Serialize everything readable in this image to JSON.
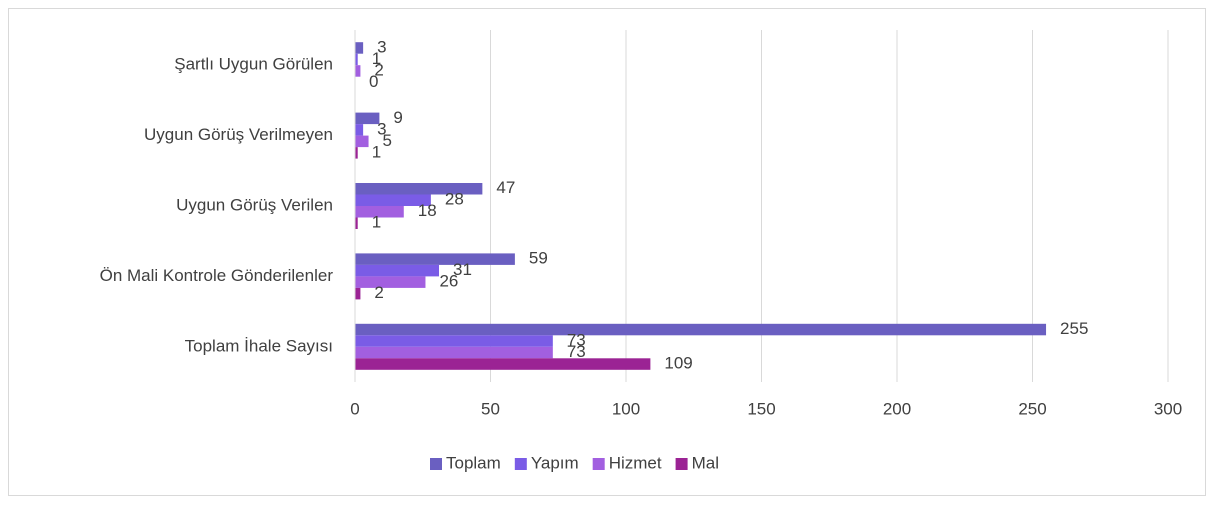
{
  "chart_data": {
    "type": "hbar",
    "categories": [
      "Şartlı Uygun Görülen",
      "Uygun Görüş Verilmeyen",
      "Uygun Görüş Verilen",
      "Ön Mali Kontrole Gönderilenler",
      "Toplam İhale Sayısı"
    ],
    "series": [
      {
        "name": "Toplam",
        "color": "#6a5fc1",
        "values": [
          3,
          9,
          47,
          59,
          255
        ]
      },
      {
        "name": "Yapım",
        "color": "#7a5ce6",
        "values": [
          1,
          3,
          28,
          31,
          73
        ]
      },
      {
        "name": "Hizmet",
        "color": "#a25fe0",
        "values": [
          2,
          5,
          18,
          26,
          73
        ]
      },
      {
        "name": "Mal",
        "color": "#9b2394",
        "values": [
          0,
          1,
          1,
          2,
          109
        ]
      }
    ],
    "xlim": [
      0,
      300
    ],
    "xticks": [
      0,
      50,
      100,
      150,
      200,
      250,
      300
    ],
    "grid": true,
    "legend": "bottom"
  }
}
